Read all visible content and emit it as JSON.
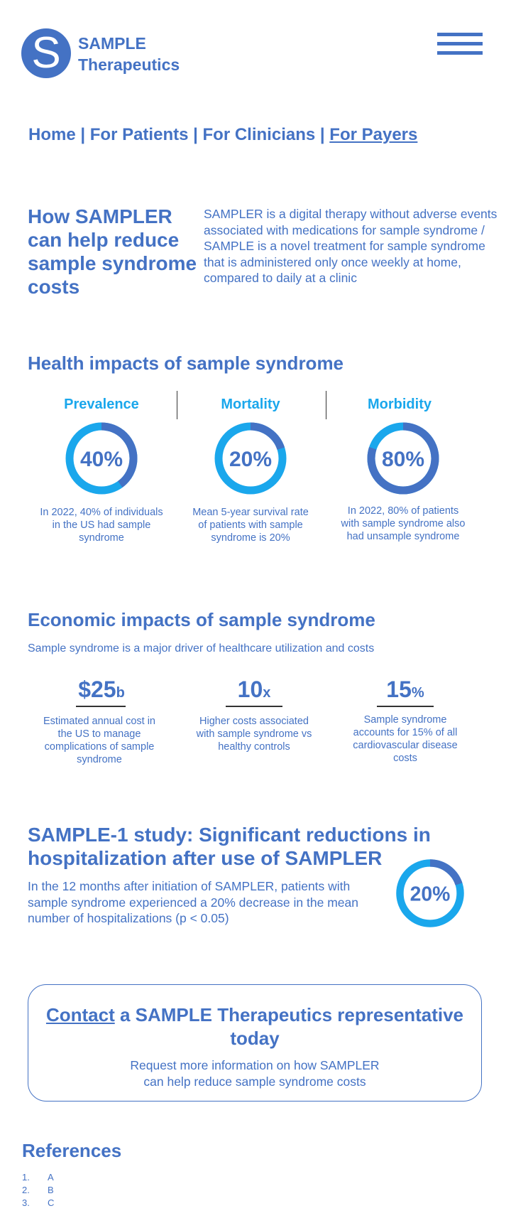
{
  "header": {
    "logo_letter": "S",
    "brand_line1": "SAMPLE",
    "brand_line2": "Therapeutics",
    "menu_icon": "hamburger-menu-icon"
  },
  "nav": {
    "home": "Home",
    "sep": " | ",
    "patients": "For Patients",
    "clinicians": "For Clinicians",
    "payers": "For Payers"
  },
  "intro": {
    "title": "How SAMPLER can help reduce sample syndrome costs",
    "text": "SAMPLER is a digital therapy without adverse events associated with medications for sample syndrome / SAMPLE is a novel treatment for sample syndrome that is administered only once weekly at home, compared to daily at a clinic"
  },
  "health": {
    "title": "Health impacts of sample syndrome",
    "metrics": [
      {
        "label": "Prevalence",
        "value": "40%",
        "fraction": 0.4,
        "caption": "In 2022, 40% of individuals in the US had sample syndrome"
      },
      {
        "label": "Mortality",
        "value": "20%",
        "fraction": 0.2,
        "caption": "Mean 5-year survival rate of patients with sample syndrome is 20%"
      },
      {
        "label": "Morbidity",
        "value": "80%",
        "fraction": 0.8,
        "caption": "In 2022, 80% of patients with sample syndrome also had unsample syndrome"
      }
    ]
  },
  "economic": {
    "title": "Economic impacts of sample syndrome",
    "subtitle": "Sample syndrome is a major driver of healthcare utilization and costs",
    "stats": [
      {
        "value": "$25",
        "unit": "b",
        "caption": "Estimated annual cost in the US to manage complications of sample syndrome"
      },
      {
        "value": "10",
        "unit": "x",
        "caption": "Higher costs associated with sample syndrome vs healthy controls"
      },
      {
        "value": "15",
        "unit": "%",
        "caption": "Sample syndrome accounts for 15% of all cardiovascular disease costs"
      }
    ]
  },
  "study": {
    "title": "SAMPLE-1 study: Significant reductions in hospitalization after use of SAMPLER",
    "text": "In the 12 months after initiation of SAMPLER, patients with sample syndrome experienced a 20% decrease in the mean number of hospitalizations (p < 0.05)",
    "value": "20%",
    "fraction": 0.2
  },
  "cta": {
    "link": "Contact",
    "title_rest": " a SAMPLE Therapeutics representative today",
    "text": "Request more information on how SAMPLER can help reduce sample syndrome costs"
  },
  "references": {
    "title": "References",
    "items": [
      {
        "num": "1.",
        "text": "A"
      },
      {
        "num": "2.",
        "text": "B"
      },
      {
        "num": "3.",
        "text": "C"
      }
    ]
  },
  "colors": {
    "primary": "#4472c4",
    "accent": "#1aa7ec"
  }
}
